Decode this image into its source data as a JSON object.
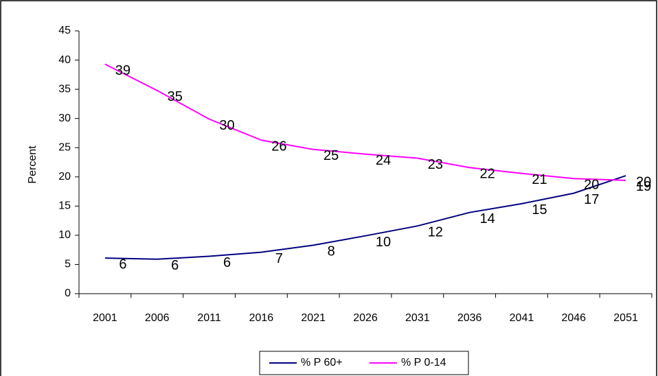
{
  "chart_data": {
    "type": "line",
    "y_label": "Percent",
    "categories": [
      "2001",
      "2006",
      "2011",
      "2016",
      "2021",
      "2026",
      "2031",
      "2036",
      "2041",
      "2046",
      "2051"
    ],
    "series": [
      {
        "name": "% P 60+",
        "color": "#000080",
        "values": [
          6.1,
          5.9,
          6.4,
          7.1,
          8.3,
          9.9,
          11.6,
          13.9,
          15.4,
          17.2,
          20.2
        ],
        "value_labels": [
          "6",
          "6",
          "6",
          "7",
          "8",
          "10",
          "12",
          "14",
          "15",
          "17",
          "20"
        ]
      },
      {
        "name": "% P 0-14",
        "color": "#ff00ff",
        "values": [
          39.3,
          34.8,
          29.9,
          26.3,
          24.7,
          23.9,
          23.2,
          21.6,
          20.6,
          19.7,
          19.4
        ],
        "value_labels": [
          "39",
          "35",
          "30",
          "26",
          "25",
          "24",
          "23",
          "22",
          "21",
          "20",
          "19"
        ]
      }
    ],
    "ylim": [
      0,
      45
    ],
    "yticks": [
      0,
      5,
      10,
      15,
      20,
      25,
      30,
      35,
      40,
      45
    ],
    "grid": false,
    "legend": "bottom"
  }
}
